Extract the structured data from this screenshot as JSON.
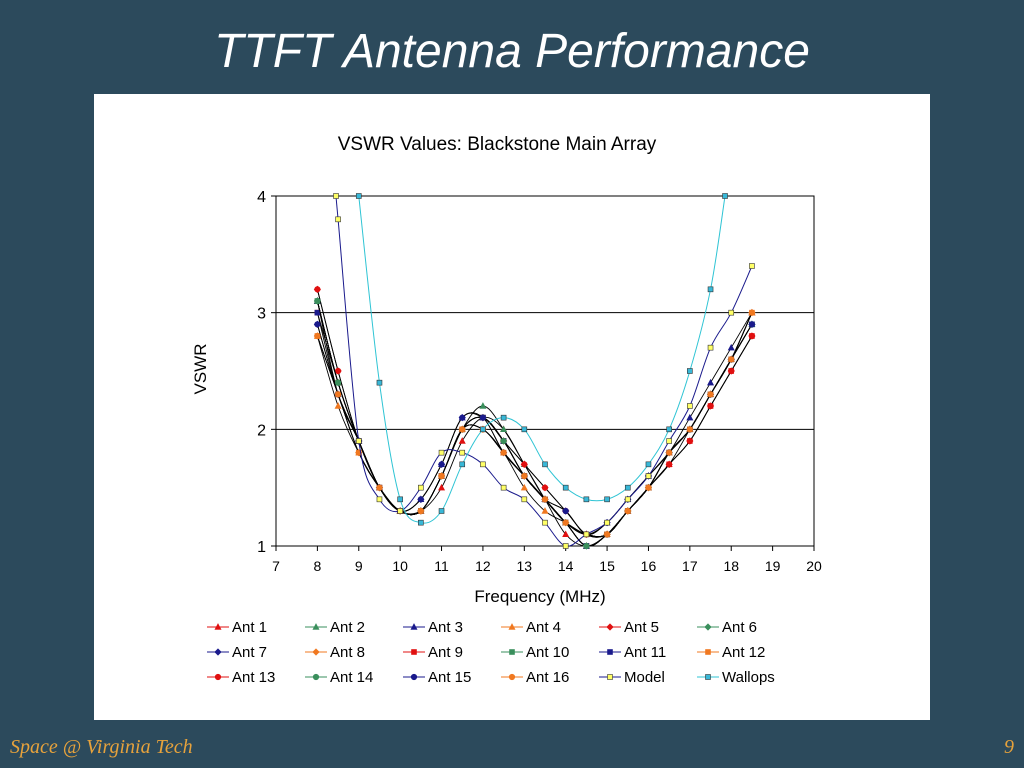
{
  "slide": {
    "title": "TTFT Antenna Performance",
    "footer_left": "Space @ Virginia Tech",
    "page_number": "9"
  },
  "chart_data": {
    "type": "line",
    "title": "VSWR Values: Blackstone Main Array",
    "xlabel": "Frequency (MHz)",
    "ylabel": "VSWR",
    "xlim": [
      7,
      20
    ],
    "ylim": [
      1,
      4
    ],
    "x_ticks": [
      "7",
      "8",
      "9",
      "10",
      "11",
      "12",
      "13",
      "14",
      "15",
      "16",
      "17",
      "18",
      "19",
      "20"
    ],
    "y_ticks": [
      "1",
      "2",
      "3",
      "4"
    ],
    "gridlines": "horizontal major",
    "legend_position": "bottom",
    "series": [
      {
        "name": "Ant 1",
        "color": "#e01010",
        "marker": "triangle",
        "x": [
          8,
          8.5,
          9,
          9.5,
          10,
          10.5,
          11,
          11.5,
          12,
          12.5,
          13,
          13.5,
          14,
          14.5,
          15,
          15.5,
          16,
          16.5,
          17,
          17.5,
          18,
          18.5
        ],
        "y": [
          3.1,
          2.4,
          1.9,
          1.5,
          1.3,
          1.3,
          1.5,
          1.9,
          2.1,
          2.0,
          1.7,
          1.4,
          1.1,
          1.0,
          1.1,
          1.3,
          1.5,
          1.7,
          2.0,
          2.3,
          2.6,
          3.0
        ]
      },
      {
        "name": "Ant 2",
        "color": "#3a8f5c",
        "marker": "triangle",
        "x": [
          8,
          8.5,
          9,
          9.5,
          10,
          10.5,
          11,
          11.5,
          12,
          12.5,
          13,
          13.5,
          14,
          14.5,
          15,
          15.5,
          16,
          16.5,
          17,
          17.5,
          18,
          18.5
        ],
        "y": [
          3.1,
          2.4,
          1.9,
          1.5,
          1.3,
          1.3,
          1.6,
          2.0,
          2.2,
          2.0,
          1.7,
          1.4,
          1.2,
          1.0,
          1.1,
          1.3,
          1.5,
          1.8,
          2.0,
          2.3,
          2.6,
          2.9
        ]
      },
      {
        "name": "Ant 3",
        "color": "#1a1a8c",
        "marker": "triangle",
        "x": [
          8,
          8.5,
          9,
          9.5,
          10,
          10.5,
          11,
          11.5,
          12,
          12.5,
          13,
          13.5,
          14,
          14.5,
          15,
          15.5,
          16,
          16.5,
          17,
          17.5,
          18,
          18.5
        ],
        "y": [
          3.1,
          2.3,
          1.9,
          1.5,
          1.3,
          1.4,
          1.7,
          2.1,
          2.1,
          1.9,
          1.6,
          1.4,
          1.2,
          1.1,
          1.2,
          1.4,
          1.6,
          1.8,
          2.1,
          2.4,
          2.7,
          3.0
        ]
      },
      {
        "name": "Ant 4",
        "color": "#f07820",
        "marker": "triangle",
        "x": [
          8,
          8.5,
          9,
          9.5,
          10,
          10.5,
          11,
          11.5,
          12,
          12.5,
          13,
          13.5,
          14,
          14.5,
          15,
          15.5,
          16,
          16.5,
          17,
          17.5,
          18,
          18.5
        ],
        "y": [
          2.8,
          2.2,
          1.8,
          1.5,
          1.3,
          1.3,
          1.6,
          2.0,
          2.0,
          1.8,
          1.5,
          1.3,
          1.2,
          1.1,
          1.1,
          1.3,
          1.5,
          1.8,
          2.0,
          2.3,
          2.6,
          3.0
        ]
      },
      {
        "name": "Ant 5",
        "color": "#e01010",
        "marker": "diamond",
        "x": [
          8,
          8.5,
          9,
          9.5,
          10,
          10.5,
          11,
          11.5,
          12,
          12.5,
          13,
          13.5,
          14,
          14.5,
          15,
          15.5,
          16,
          16.5,
          17,
          17.5,
          18,
          18.5
        ],
        "y": [
          3.2,
          2.5,
          1.9,
          1.5,
          1.3,
          1.3,
          1.6,
          2.0,
          2.1,
          1.9,
          1.7,
          1.5,
          1.3,
          1.1,
          1.1,
          1.3,
          1.5,
          1.7,
          1.9,
          2.2,
          2.5,
          2.8
        ]
      },
      {
        "name": "Ant 6",
        "color": "#3a8f5c",
        "marker": "diamond",
        "x": [
          8,
          8.5,
          9,
          9.5,
          10,
          10.5,
          11,
          11.5,
          12,
          12.5,
          13,
          13.5,
          14,
          14.5,
          15,
          15.5,
          16,
          16.5,
          17,
          17.5,
          18,
          18.5
        ],
        "y": [
          3.1,
          2.4,
          1.9,
          1.5,
          1.3,
          1.3,
          1.6,
          2.0,
          2.1,
          1.9,
          1.6,
          1.4,
          1.2,
          1.0,
          1.1,
          1.3,
          1.5,
          1.8,
          2.0,
          2.3,
          2.6,
          2.9
        ]
      },
      {
        "name": "Ant 7",
        "color": "#1a1a8c",
        "marker": "diamond",
        "x": [
          8,
          8.5,
          9,
          9.5,
          10,
          10.5,
          11,
          11.5,
          12,
          12.5,
          13,
          13.5,
          14,
          14.5,
          15,
          15.5,
          16,
          16.5,
          17,
          17.5,
          18,
          18.5
        ],
        "y": [
          2.9,
          2.3,
          1.9,
          1.5,
          1.3,
          1.4,
          1.7,
          2.1,
          2.1,
          1.8,
          1.6,
          1.4,
          1.3,
          1.1,
          1.2,
          1.4,
          1.6,
          1.8,
          2.0,
          2.3,
          2.6,
          2.9
        ]
      },
      {
        "name": "Ant 8",
        "color": "#f07820",
        "marker": "diamond",
        "x": [
          8,
          8.5,
          9,
          9.5,
          10,
          10.5,
          11,
          11.5,
          12,
          12.5,
          13,
          13.5,
          14,
          14.5,
          15,
          15.5,
          16,
          16.5,
          17,
          17.5,
          18,
          18.5
        ],
        "y": [
          2.8,
          2.3,
          1.8,
          1.5,
          1.3,
          1.3,
          1.6,
          2.0,
          2.0,
          1.8,
          1.6,
          1.4,
          1.2,
          1.1,
          1.1,
          1.3,
          1.5,
          1.8,
          2.0,
          2.3,
          2.6,
          3.0
        ]
      },
      {
        "name": "Ant 9",
        "color": "#e01010",
        "marker": "square",
        "x": [
          8,
          8.5,
          9,
          9.5,
          10,
          10.5,
          11,
          11.5,
          12,
          12.5,
          13,
          13.5,
          14,
          14.5,
          15,
          15.5,
          16,
          16.5,
          17,
          17.5,
          18,
          18.5
        ],
        "y": [
          3.0,
          2.4,
          1.9,
          1.5,
          1.3,
          1.3,
          1.6,
          2.0,
          2.1,
          1.9,
          1.6,
          1.4,
          1.2,
          1.0,
          1.1,
          1.3,
          1.5,
          1.7,
          1.9,
          2.2,
          2.5,
          2.8
        ]
      },
      {
        "name": "Ant 10",
        "color": "#3a8f5c",
        "marker": "square",
        "x": [
          8,
          8.5,
          9,
          9.5,
          10,
          10.5,
          11,
          11.5,
          12,
          12.5,
          13,
          13.5,
          14,
          14.5,
          15,
          15.5,
          16,
          16.5,
          17,
          17.5,
          18,
          18.5
        ],
        "y": [
          3.1,
          2.4,
          1.9,
          1.5,
          1.3,
          1.3,
          1.6,
          2.0,
          2.1,
          1.9,
          1.6,
          1.4,
          1.2,
          1.0,
          1.1,
          1.3,
          1.5,
          1.8,
          2.0,
          2.3,
          2.6,
          2.9
        ]
      },
      {
        "name": "Ant 11",
        "color": "#1a1a8c",
        "marker": "square",
        "x": [
          8,
          8.5,
          9,
          9.5,
          10,
          10.5,
          11,
          11.5,
          12,
          12.5,
          13,
          13.5,
          14,
          14.5,
          15,
          15.5,
          16,
          16.5,
          17,
          17.5,
          18,
          18.5
        ],
        "y": [
          3.0,
          2.3,
          1.9,
          1.5,
          1.3,
          1.3,
          1.6,
          2.0,
          2.1,
          1.9,
          1.6,
          1.4,
          1.2,
          1.0,
          1.1,
          1.3,
          1.5,
          1.8,
          2.0,
          2.3,
          2.6,
          2.9
        ]
      },
      {
        "name": "Ant 12",
        "color": "#f07820",
        "marker": "square",
        "x": [
          8,
          8.5,
          9,
          9.5,
          10,
          10.5,
          11,
          11.5,
          12,
          12.5,
          13,
          13.5,
          14,
          14.5,
          15,
          15.5,
          16,
          16.5,
          17,
          17.5,
          18,
          18.5
        ],
        "y": [
          2.8,
          2.3,
          1.8,
          1.5,
          1.3,
          1.3,
          1.6,
          2.0,
          2.0,
          1.8,
          1.6,
          1.4,
          1.2,
          1.1,
          1.1,
          1.3,
          1.5,
          1.8,
          2.0,
          2.3,
          2.6,
          3.0
        ]
      },
      {
        "name": "Ant 13",
        "color": "#e01010",
        "marker": "circle",
        "x": [
          8,
          8.5,
          9,
          9.5,
          10,
          10.5,
          11,
          11.5,
          12,
          12.5,
          13,
          13.5,
          14,
          14.5,
          15,
          15.5,
          16,
          16.5,
          17,
          17.5,
          18,
          18.5
        ],
        "y": [
          3.2,
          2.5,
          1.9,
          1.5,
          1.3,
          1.3,
          1.6,
          2.0,
          2.1,
          1.9,
          1.7,
          1.5,
          1.3,
          1.1,
          1.1,
          1.3,
          1.5,
          1.7,
          1.9,
          2.2,
          2.5,
          2.8
        ]
      },
      {
        "name": "Ant 14",
        "color": "#3a8f5c",
        "marker": "circle",
        "x": [
          8,
          8.5,
          9,
          9.5,
          10,
          10.5,
          11,
          11.5,
          12,
          12.5,
          13,
          13.5,
          14,
          14.5,
          15,
          15.5,
          16,
          16.5,
          17,
          17.5,
          18,
          18.5
        ],
        "y": [
          3.1,
          2.4,
          1.9,
          1.5,
          1.3,
          1.3,
          1.6,
          2.0,
          2.1,
          1.9,
          1.6,
          1.4,
          1.2,
          1.0,
          1.1,
          1.3,
          1.5,
          1.8,
          2.0,
          2.3,
          2.6,
          2.9
        ]
      },
      {
        "name": "Ant 15",
        "color": "#1a1a8c",
        "marker": "circle",
        "x": [
          8,
          8.5,
          9,
          9.5,
          10,
          10.5,
          11,
          11.5,
          12,
          12.5,
          13,
          13.5,
          14,
          14.5,
          15,
          15.5,
          16,
          16.5,
          17,
          17.5,
          18,
          18.5
        ],
        "y": [
          2.9,
          2.3,
          1.9,
          1.5,
          1.3,
          1.4,
          1.7,
          2.1,
          2.1,
          1.8,
          1.6,
          1.4,
          1.3,
          1.1,
          1.2,
          1.4,
          1.6,
          1.8,
          2.0,
          2.3,
          2.6,
          2.9
        ]
      },
      {
        "name": "Ant 16",
        "color": "#f07820",
        "marker": "circle",
        "x": [
          8,
          8.5,
          9,
          9.5,
          10,
          10.5,
          11,
          11.5,
          12,
          12.5,
          13,
          13.5,
          14,
          14.5,
          15,
          15.5,
          16,
          16.5,
          17,
          17.5,
          18,
          18.5
        ],
        "y": [
          2.8,
          2.3,
          1.8,
          1.5,
          1.3,
          1.3,
          1.6,
          2.0,
          2.0,
          1.8,
          1.6,
          1.4,
          1.2,
          1.1,
          1.1,
          1.3,
          1.5,
          1.8,
          2.0,
          2.3,
          2.6,
          3.0
        ]
      },
      {
        "name": "Model",
        "color": "#1a1a8c",
        "marker": "square-yellow",
        "x": [
          8.45,
          8.5,
          9,
          9.5,
          10,
          10.5,
          11,
          11.5,
          12,
          12.5,
          13,
          13.5,
          14,
          14.5,
          15,
          15.5,
          16,
          16.5,
          17,
          17.5,
          18,
          18.5
        ],
        "y": [
          4.0,
          3.8,
          1.9,
          1.4,
          1.3,
          1.5,
          1.8,
          1.8,
          1.7,
          1.5,
          1.4,
          1.2,
          1.0,
          1.1,
          1.2,
          1.4,
          1.6,
          1.9,
          2.2,
          2.7,
          3.0,
          3.4
        ]
      },
      {
        "name": "Wallops",
        "color": "#2fc4d4",
        "marker": "square-cyan",
        "x": [
          9,
          9.5,
          10,
          10.5,
          11,
          11.5,
          12,
          12.5,
          13,
          13.5,
          14,
          14.5,
          15,
          15.5,
          16,
          16.5,
          17,
          17.5,
          17.85
        ],
        "y": [
          4.0,
          2.4,
          1.4,
          1.2,
          1.3,
          1.7,
          2.0,
          2.1,
          2.0,
          1.7,
          1.5,
          1.4,
          1.4,
          1.5,
          1.7,
          2.0,
          2.5,
          3.2,
          4.0
        ]
      }
    ]
  }
}
